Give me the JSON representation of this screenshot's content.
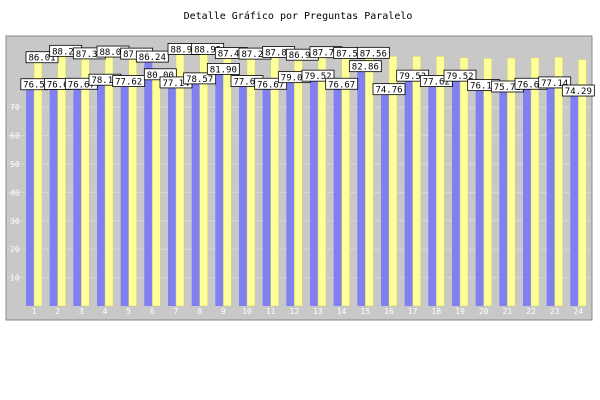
{
  "chart_data": {
    "type": "bar",
    "title": "Detalle Gráfico por Preguntas Paralelo",
    "xlabel": "",
    "ylabel": "",
    "ylim": [
      0,
      100
    ],
    "yticks": [
      10,
      20,
      30,
      40,
      50,
      60,
      70
    ],
    "grid": true,
    "colors": {
      "background": "#c8c8c8",
      "series1": "#8080f0",
      "series2": "#ffff99",
      "series2_edge": "#d0d070",
      "label_box": "#ffffff"
    },
    "categories": [
      "1",
      "2",
      "3",
      "4",
      "5",
      "6",
      "7",
      "8",
      "9",
      "10",
      "11",
      "12",
      "13",
      "14",
      "15",
      "16",
      "17",
      "18",
      "19",
      "20",
      "21",
      "22",
      "23",
      "24"
    ],
    "series": [
      {
        "values": [
          76.5,
          76.6,
          76.67,
          78.1,
          77.62,
          86.24,
          77.14,
          78.57,
          81.9,
          77.62,
          76.67,
          79.0,
          79.52,
          76.67,
          82.86,
          74.76,
          79.52,
          77.62,
          79.52,
          76.19,
          75.71,
          76.67,
          77.14,
          74.29
        ]
      },
      {
        "values": [
          86.01,
          88.26,
          87.36,
          88.01,
          87.28,
          80.0,
          88.91,
          88.95,
          87.48,
          87.29,
          87.86,
          86.9,
          87.79,
          87.52,
          87.56,
          87.9,
          87.9,
          87.9,
          87.4,
          87.2,
          87.3,
          87.4,
          87.6,
          86.8
        ]
      }
    ],
    "value_labels": [
      [
        "76.5",
        "86.01"
      ],
      [
        "76.6",
        "88.26"
      ],
      [
        "76.67",
        "87.36"
      ],
      [
        "78.10",
        "88.01"
      ],
      [
        "77.62",
        "87.28"
      ],
      [
        "86.24",
        "80.00"
      ],
      [
        "77.14",
        "88.91"
      ],
      [
        "78.57",
        "88.95"
      ],
      [
        "81.90",
        "87.48"
      ],
      [
        "77.62",
        "87.29"
      ],
      [
        "76.67",
        "87.86"
      ],
      [
        "79.00",
        "86.90"
      ],
      [
        "79.52",
        "87.79"
      ],
      [
        "76.67",
        "87.52"
      ],
      [
        "82.86",
        "87.56"
      ],
      [
        "74.76",
        ""
      ],
      [
        "79.52",
        ""
      ],
      [
        "77.62",
        ""
      ],
      [
        "79.52",
        ""
      ],
      [
        "76.19",
        ""
      ],
      [
        "75.71",
        ""
      ],
      [
        "76.67",
        ""
      ],
      [
        "77.14",
        ""
      ],
      [
        "74.29",
        ""
      ]
    ]
  }
}
